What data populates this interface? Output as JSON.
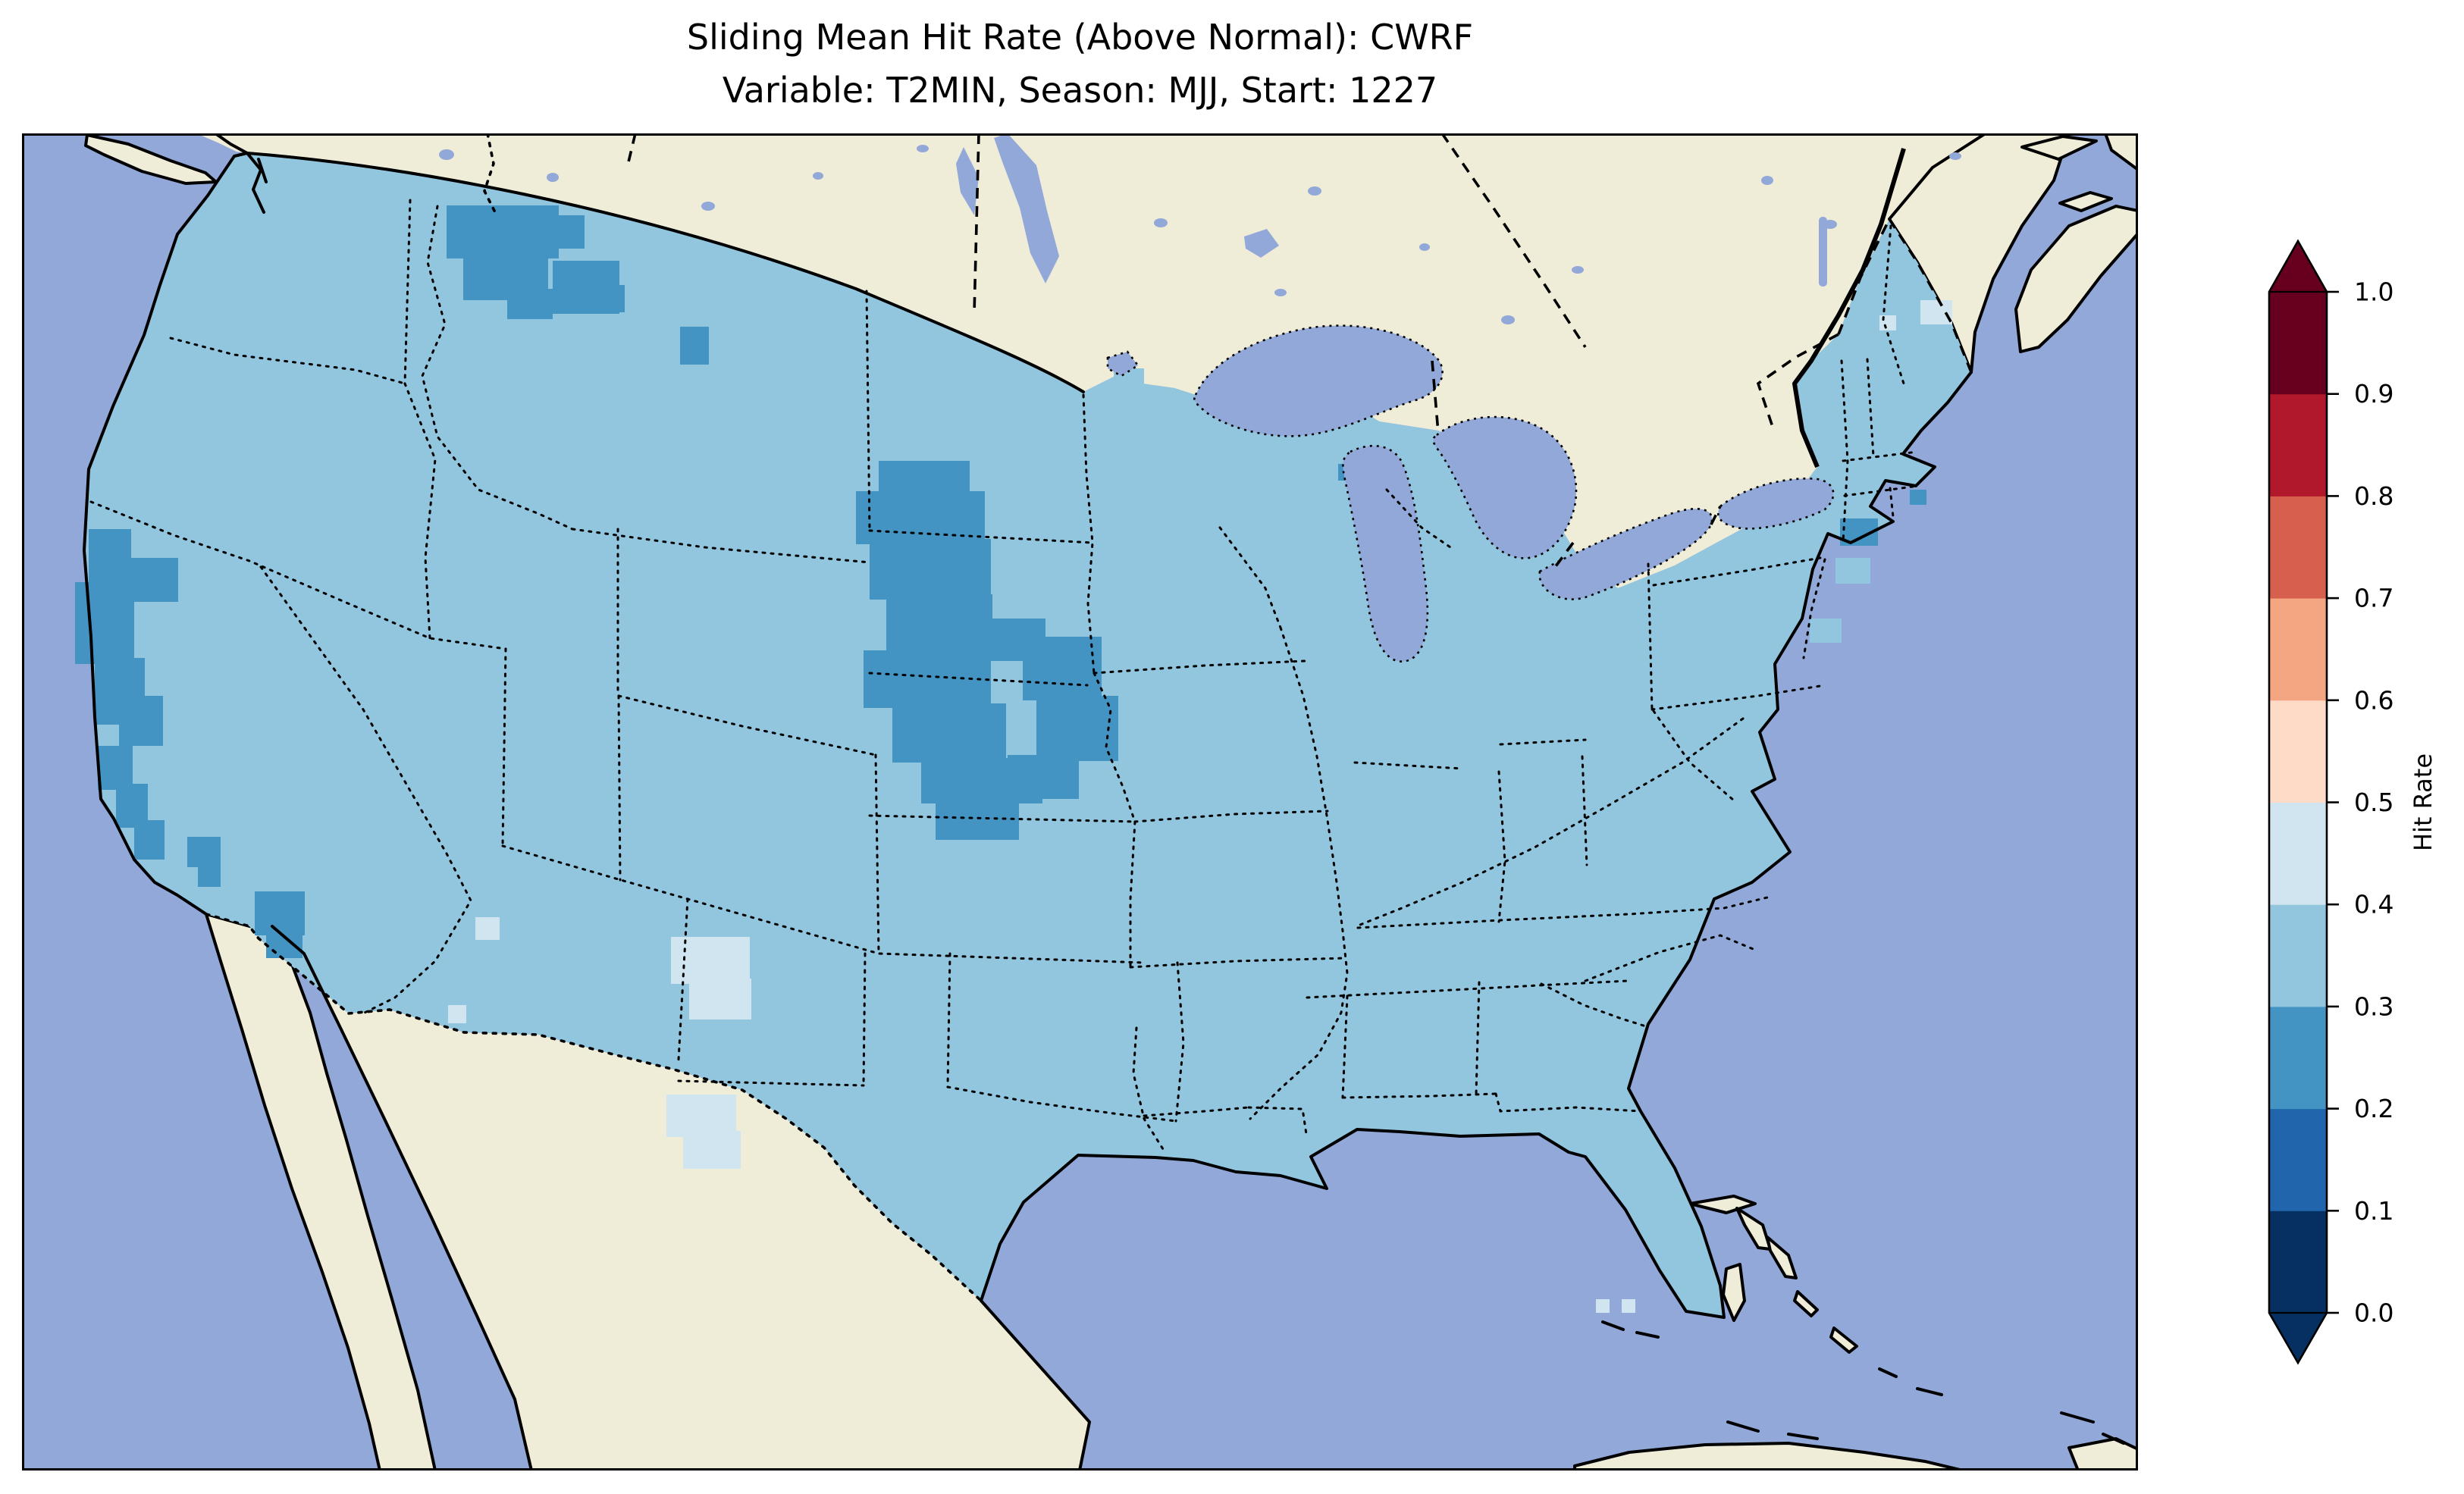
{
  "figure": {
    "title_line1": "Sliding Mean Hit Rate (Above Normal): CWRF",
    "title_line2": "Variable: T2MIN, Season: MJJ, Start: 1227"
  },
  "chart_data": {
    "type": "heatmap",
    "title": "Sliding Mean Hit Rate (Above Normal): CWRF",
    "subtitle": "Variable: T2MIN, Season: MJJ, Start: 1227",
    "metric": "Sliding Mean Hit Rate (Above Normal)",
    "model": "CWRF",
    "variable": "T2MIN",
    "season": "MJJ",
    "start": "1227",
    "map_extent": "Contiguous United States with southern Canada, northern Mexico, Gulf of Mexico, Bahamas and Cuba",
    "colorbar": {
      "label": "Hit Rate",
      "min": 0.0,
      "max": 1.0,
      "tick_labels_top_to_bottom": [
        "1.0",
        "0.9",
        "0.8",
        "0.7",
        "0.6",
        "0.5",
        "0.4",
        "0.3",
        "0.2",
        "0.1",
        "0.0"
      ],
      "extend": "both",
      "bin_colors_low_to_high": [
        "#053061",
        "#2166ac",
        "#4393c3",
        "#92c5de",
        "#d1e5f0",
        "#fddbc7",
        "#f4a582",
        "#d6604d",
        "#b2182b",
        "#67001f"
      ],
      "bin_edges": [
        0.0,
        0.1,
        0.2,
        0.3,
        0.4,
        0.5,
        0.6,
        0.7,
        0.8,
        0.9,
        1.0
      ]
    },
    "values_summary": {
      "dominant_bin": "0.3-0.4 (light blue) over most of the contiguous United States",
      "bin_0.2_0.3_regions": [
        "north-central Montana",
        "central plains: southern South Dakota, Nebraska, northern Kansas, western Iowa / Missouri river area",
        "northern California coast",
        "southwestern Arizona",
        "southern California coastal cells",
        "Long Island / New York City cells",
        "western Lake Michigan shore cells",
        "Cape Cod cell"
      ],
      "bin_0.4_0.5_regions": [
        "west Texas / southeastern New Mexico patch",
        "Rio Grande (Big Bend) Texas patch",
        "small New Mexico cells",
        "northern Maine cells",
        "Florida Keys cells"
      ]
    }
  },
  "map": {
    "ocean_color": "#92a8d8",
    "land_color": "#efecd8",
    "coastline_color": "#000000",
    "frame_color": "#000000"
  }
}
